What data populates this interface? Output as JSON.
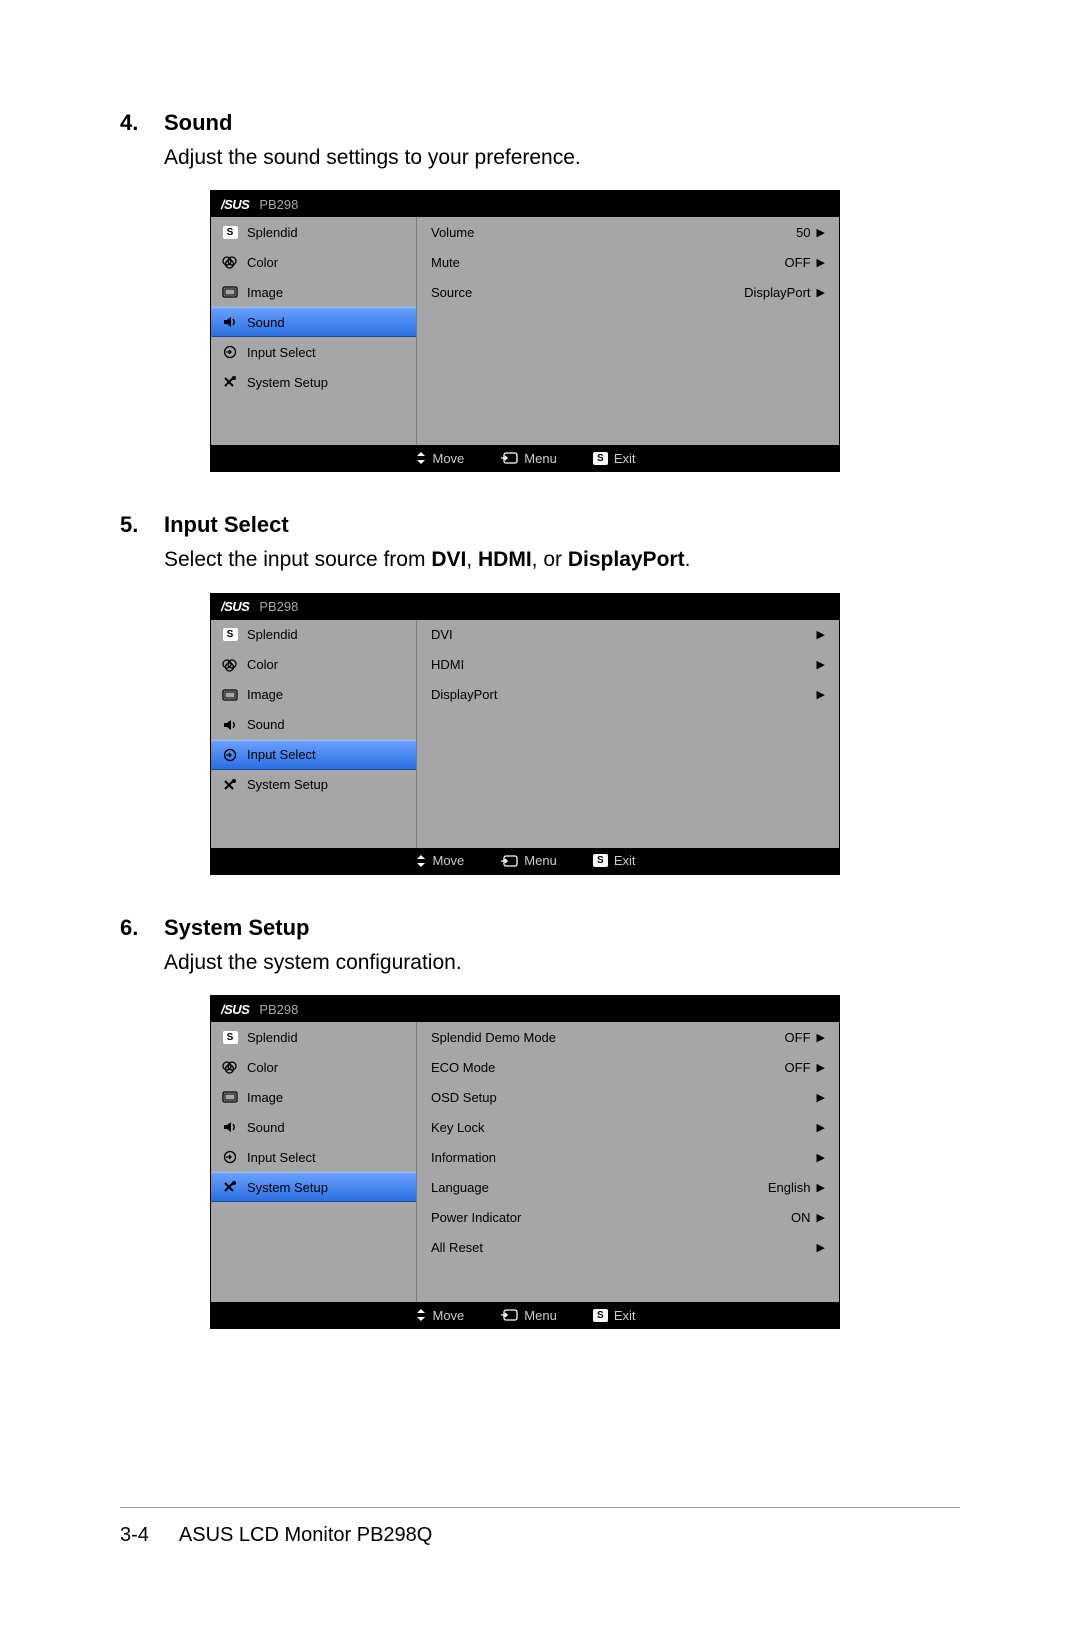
{
  "colors": {
    "page_bg": "#ffffff",
    "osd_bg": "#a6a6a6",
    "osd_black": "#000000",
    "selected_gradient_top": "#6aa0ff",
    "selected_gradient_bottom": "#2a6fe0",
    "footer_text": "#cccccc",
    "header_model": "#a8a8a8"
  },
  "sections": [
    {
      "number": "4.",
      "title": "Sound",
      "desc_plain": "Adjust the sound settings to your preference.",
      "osd": {
        "brand": "/SUS",
        "model": "PB298",
        "selected_index": 3,
        "menu": [
          {
            "icon": "s-badge",
            "label": "Splendid"
          },
          {
            "icon": "color",
            "label": "Color"
          },
          {
            "icon": "image",
            "label": "Image"
          },
          {
            "icon": "sound",
            "label": "Sound"
          },
          {
            "icon": "input",
            "label": "Input Select"
          },
          {
            "icon": "setup",
            "label": "System Setup"
          }
        ],
        "options": [
          {
            "label": "Volume",
            "value": "50"
          },
          {
            "label": "Mute",
            "value": "OFF"
          },
          {
            "label": "Source",
            "value": "DisplayPort"
          }
        ],
        "footer": {
          "move": "Move",
          "menu": "Menu",
          "exit": "Exit"
        }
      }
    },
    {
      "number": "5.",
      "title": "Input Select",
      "desc_html_parts": [
        "Select the input source from ",
        "DVI",
        ", ",
        "HDMI",
        ", or ",
        "DisplayPort",
        "."
      ],
      "osd": {
        "brand": "/SUS",
        "model": "PB298",
        "selected_index": 4,
        "menu": [
          {
            "icon": "s-badge",
            "label": "Splendid"
          },
          {
            "icon": "color",
            "label": "Color"
          },
          {
            "icon": "image",
            "label": "Image"
          },
          {
            "icon": "sound",
            "label": "Sound"
          },
          {
            "icon": "input",
            "label": "Input Select"
          },
          {
            "icon": "setup",
            "label": "System Setup"
          }
        ],
        "options": [
          {
            "label": "DVI",
            "value": ""
          },
          {
            "label": "HDMI",
            "value": ""
          },
          {
            "label": "DisplayPort",
            "value": ""
          }
        ],
        "footer": {
          "move": "Move",
          "menu": "Menu",
          "exit": "Exit"
        }
      }
    },
    {
      "number": "6.",
      "title": "System Setup",
      "desc_plain": "Adjust the system configuration.",
      "tall": true,
      "osd": {
        "brand": "/SUS",
        "model": "PB298",
        "selected_index": 5,
        "menu": [
          {
            "icon": "s-badge",
            "label": "Splendid"
          },
          {
            "icon": "color",
            "label": "Color"
          },
          {
            "icon": "image",
            "label": "Image"
          },
          {
            "icon": "sound",
            "label": "Sound"
          },
          {
            "icon": "input",
            "label": "Input Select"
          },
          {
            "icon": "setup",
            "label": "System Setup"
          }
        ],
        "options": [
          {
            "label": "Splendid Demo Mode",
            "value": "OFF"
          },
          {
            "label": "ECO Mode",
            "value": "OFF"
          },
          {
            "label": "OSD Setup",
            "value": ""
          },
          {
            "label": "Key Lock",
            "value": ""
          },
          {
            "label": "Information",
            "value": ""
          },
          {
            "label": "Language",
            "value": "English"
          },
          {
            "label": "Power Indicator",
            "value": "ON"
          },
          {
            "label": "All Reset",
            "value": ""
          }
        ],
        "footer": {
          "move": "Move",
          "menu": "Menu",
          "exit": "Exit"
        }
      }
    }
  ],
  "page_footer": {
    "page_num": "3-4",
    "doc_title": "ASUS LCD Monitor PB298Q"
  }
}
